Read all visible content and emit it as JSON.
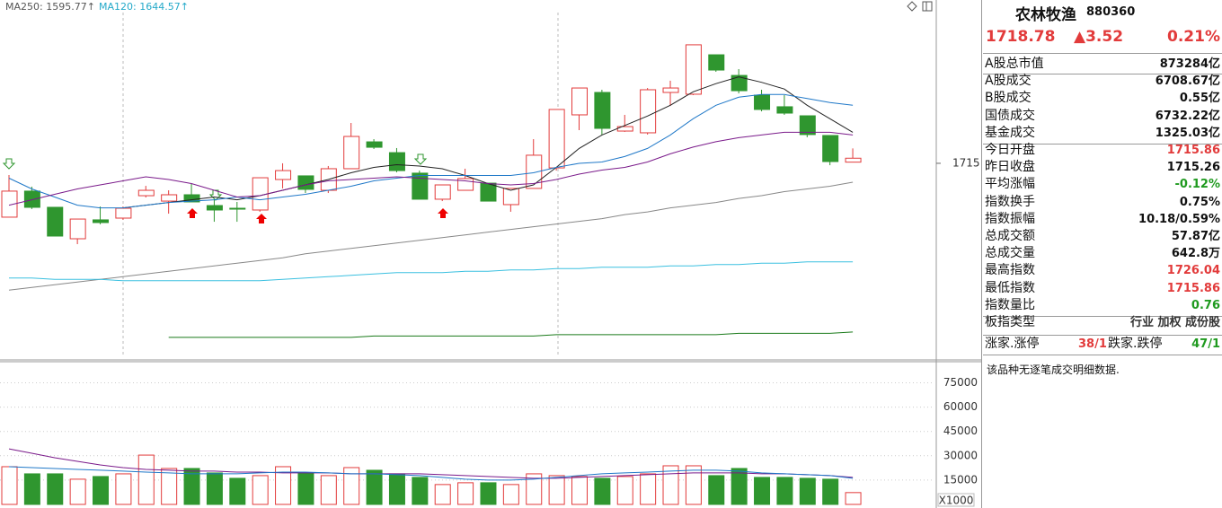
{
  "chart_data": [
    {
      "type": "candlestick",
      "legend": [
        {
          "text": "MA250: 1595.77↑",
          "color": "#555555"
        },
        {
          "text": "MA120: 1644.57↑",
          "color": "#23a9c9"
        }
      ],
      "up_color": "#e23b3b",
      "down_color": "#2f962f",
      "ylim": [
        1570,
        1836
      ],
      "yticks": [
        1715
      ],
      "ohlc": [
        [
          1675.1,
          1706.3,
          1675.1,
          1694.4
        ],
        [
          1694.4,
          1697.7,
          1681.1,
          1682.4
        ],
        [
          1682.4,
          1682.4,
          1661.1,
          1661.1
        ],
        [
          1659.1,
          1673.7,
          1655.1,
          1673.7
        ],
        [
          1673.1,
          1683.0,
          1669.8,
          1671.1
        ],
        [
          1674.4,
          1683.0,
          1673.1,
          1681.7
        ],
        [
          1691.0,
          1698.3,
          1689.7,
          1695.0
        ],
        [
          1687.0,
          1695.0,
          1677.7,
          1691.7
        ],
        [
          1691.7,
          1699.7,
          1686.4,
          1686.4
        ],
        [
          1683.7,
          1688.4,
          1671.7,
          1680.4
        ],
        [
          1681.7,
          1686.4,
          1671.7,
          1681.1
        ],
        [
          1680.4,
          1704.3,
          1679.1,
          1704.3
        ],
        [
          1703.0,
          1715.0,
          1696.4,
          1709.6
        ],
        [
          1705.7,
          1705.7,
          1693.0,
          1695.7
        ],
        [
          1695.0,
          1713.0,
          1693.0,
          1711.0
        ],
        [
          1711.0,
          1744.9,
          1711.0,
          1734.9
        ],
        [
          1730.9,
          1732.9,
          1725.6,
          1726.9
        ],
        [
          1722.9,
          1726.3,
          1708.3,
          1709.6
        ],
        [
          1707.7,
          1709.6,
          1688.4,
          1688.4
        ],
        [
          1688.4,
          1699.0,
          1687.0,
          1699.0
        ],
        [
          1695.0,
          1711.0,
          1695.0,
          1703.7
        ],
        [
          1700.3,
          1700.3,
          1687.0,
          1687.0
        ],
        [
          1684.4,
          1696.4,
          1679.1,
          1696.4
        ],
        [
          1696.4,
          1732.9,
          1696.4,
          1721.0
        ],
        [
          1711.6,
          1754.9,
          1709.6,
          1754.9
        ],
        [
          1750.9,
          1770.8,
          1739.6,
          1770.8
        ],
        [
          1767.5,
          1769.5,
          1736.3,
          1740.9
        ],
        [
          1738.9,
          1750.9,
          1738.3,
          1742.2
        ],
        [
          1737.6,
          1770.8,
          1736.3,
          1769.5
        ],
        [
          1767.5,
          1776.2,
          1757.5,
          1770.8
        ],
        [
          1766.2,
          1802.8,
          1765.5,
          1802.8
        ],
        [
          1795.4,
          1795.4,
          1782.8,
          1784.1
        ],
        [
          1780.1,
          1784.8,
          1766.8,
          1768.8
        ],
        [
          1765.5,
          1769.5,
          1753.5,
          1754.9
        ],
        [
          1756.9,
          1765.5,
          1750.9,
          1752.2
        ],
        [
          1750.2,
          1750.2,
          1734.3,
          1736.3
        ],
        [
          1735.6,
          1735.6,
          1713.6,
          1716.3
        ],
        [
          1715.86,
          1726.04,
          1715.86,
          1718.78
        ]
      ],
      "lines": [
        {
          "color": "#222222",
          "values": [
            null,
            null,
            null,
            null,
            null,
            1682,
            1684,
            1686,
            1688,
            1690,
            1688,
            1691,
            1695,
            1699,
            1703,
            1708,
            1712,
            1714,
            1713,
            1711,
            1706,
            1700,
            1695,
            1699,
            1712,
            1726,
            1736,
            1743,
            1750,
            1758,
            1768,
            1774,
            1779,
            1775,
            1770,
            1758,
            1748,
            1738
          ]
        },
        {
          "color": "#1f78c8",
          "values": [
            1704,
            1696,
            1690,
            1684,
            1682,
            1682,
            1684,
            1686,
            1687,
            1688,
            1690,
            1688,
            1690,
            1692,
            1695,
            1698,
            1702,
            1704,
            1706,
            1706,
            1706,
            1706,
            1706,
            1708,
            1712,
            1715,
            1716,
            1720,
            1726,
            1736,
            1748,
            1758,
            1764,
            1766,
            1766,
            1763,
            1760,
            1758
          ]
        },
        {
          "color": "#7a1a8a",
          "values": [
            1684,
            1688,
            1692,
            1696,
            1699,
            1702,
            1705,
            1703,
            1700,
            1695,
            1690,
            1691,
            1695,
            1699,
            1702,
            1703,
            1704,
            1705,
            1704,
            1703,
            1702,
            1700,
            1699,
            1700,
            1703,
            1707,
            1710,
            1712,
            1716,
            1722,
            1727,
            1731,
            1734,
            1736,
            1738,
            1738,
            1738,
            1736
          ]
        },
        {
          "color": "#888888",
          "values": [
            1621,
            1623,
            1625,
            1627,
            1629,
            1631,
            1633,
            1635,
            1637,
            1639,
            1641,
            1643,
            1645,
            1648,
            1650,
            1652,
            1654,
            1656,
            1658,
            1660,
            1662,
            1664,
            1666,
            1668,
            1670,
            1672,
            1674,
            1677,
            1679,
            1682,
            1684,
            1686,
            1689,
            1691,
            1694,
            1696,
            1698,
            1701
          ]
        },
        {
          "color": "#3bc0e0",
          "values": [
            1630,
            1630,
            1629,
            1629,
            1629,
            1628,
            1628,
            1628,
            1628,
            1628,
            1628,
            1628,
            1629,
            1630,
            1631,
            1632,
            1633,
            1634,
            1634,
            1634,
            1635,
            1635,
            1636,
            1636,
            1637,
            1637,
            1638,
            1638,
            1638,
            1639,
            1639,
            1640,
            1640,
            1641,
            1641,
            1642,
            1642,
            1642
          ]
        },
        {
          "color": "#1a7a1a",
          "values": [
            null,
            null,
            null,
            null,
            null,
            null,
            null,
            1586,
            1586,
            1586,
            1586,
            1586,
            1586,
            1586,
            1586,
            1586,
            1587,
            1587,
            1587,
            1587,
            1587,
            1587,
            1587,
            1587,
            1588,
            1588,
            1588,
            1588,
            1588,
            1588,
            1588,
            1588,
            1589,
            1589,
            1589,
            1589,
            1589,
            1590
          ]
        }
      ]
    },
    {
      "type": "bar",
      "ylim": [
        0,
        88000
      ],
      "yticks": [
        15000,
        30000,
        45000,
        60000,
        75000
      ],
      "unit_label": "X1000",
      "values": [
        23260,
        18850,
        18850,
        15550,
        17200,
        18850,
        30410,
        22160,
        22160,
        19400,
        16100,
        17750,
        23260,
        19400,
        17750,
        22710,
        21050,
        18850,
        16650,
        12250,
        13350,
        13350,
        12250,
        18850,
        17750,
        17200,
        16100,
        17200,
        18850,
        23810,
        23810,
        17750,
        22160,
        16650,
        16650,
        16100,
        15550,
        7290
      ],
      "lines": [
        {
          "color": "#7a1a8a",
          "values": [
            34270,
            31520,
            28770,
            26560,
            24360,
            22710,
            21610,
            21060,
            20510,
            20510,
            19950,
            19950,
            19400,
            19400,
            19400,
            18850,
            18850,
            18850,
            18850,
            18300,
            17750,
            17200,
            16650,
            16100,
            16100,
            16650,
            17200,
            17750,
            18300,
            18850,
            19400,
            19400,
            19400,
            18850,
            18850,
            18300,
            17750,
            16650
          ]
        },
        {
          "color": "#1f78c8",
          "values": [
            23260,
            22710,
            22160,
            21610,
            21060,
            20510,
            19950,
            19400,
            18850,
            18850,
            18850,
            19400,
            19950,
            19950,
            19400,
            18850,
            18850,
            18300,
            17750,
            16650,
            15550,
            15000,
            15000,
            15550,
            16650,
            17750,
            18850,
            19400,
            19950,
            20510,
            21060,
            21060,
            20510,
            19400,
            18850,
            18300,
            17750,
            16100
          ]
        }
      ]
    }
  ],
  "info": {
    "name": "农林牧渔",
    "code": "880360",
    "price": "1718.78",
    "change": "▲3.52",
    "change_pct": "0.21%",
    "rows": [
      {
        "label": "A股总市值",
        "value": "873284亿",
        "color": "#111111"
      },
      {
        "label": "A股成交",
        "value": "6708.67亿",
        "color": "#111111"
      },
      {
        "label": "B股成交",
        "value": "0.55亿",
        "color": "#111111"
      },
      {
        "label": "国债成交",
        "value": "6732.22亿",
        "color": "#111111"
      },
      {
        "label": "基金成交",
        "value": "1325.03亿",
        "color": "#111111"
      },
      {
        "label": "今日开盘",
        "value": "1715.86",
        "color": "#e23b3b"
      },
      {
        "label": "昨日收盘",
        "value": "1715.26",
        "color": "#111111"
      },
      {
        "label": "平均涨幅",
        "value": "-0.12%",
        "color": "#1f9a1f"
      },
      {
        "label": "指数换手",
        "value": "0.75%",
        "color": "#111111"
      },
      {
        "label": "指数振幅",
        "value": "10.18/0.59%",
        "color": "#111111"
      },
      {
        "label": "总成交额",
        "value": "57.87亿",
        "color": "#111111"
      },
      {
        "label": "总成交量",
        "value": "642.8万",
        "color": "#111111"
      },
      {
        "label": "最高指数",
        "value": "1726.04",
        "color": "#e23b3b"
      },
      {
        "label": "最低指数",
        "value": "1715.86",
        "color": "#e23b3b"
      },
      {
        "label": "指数量比",
        "value": "0.76",
        "color": "#1f9a1f"
      },
      {
        "label": "板指类型",
        "value": "行业 加权 成份股",
        "color": "#333333"
      }
    ],
    "breadth": {
      "up_label": "涨家.涨停",
      "up_value": "38/1",
      "down_label": "跌家.跌停",
      "down_value": "47/1"
    },
    "note": "该品种无逐笔成交明细数据."
  }
}
